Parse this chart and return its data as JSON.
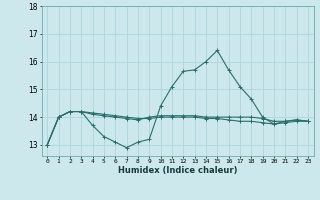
{
  "xlabel": "Humidex (Indice chaleur)",
  "background_color": "#cde8ec",
  "grid_color": "#b0d8de",
  "line_color": "#2a6e6a",
  "x_values": [
    0,
    1,
    2,
    3,
    4,
    5,
    6,
    7,
    8,
    9,
    10,
    11,
    12,
    13,
    14,
    15,
    16,
    17,
    18,
    19,
    20,
    21,
    22,
    23
  ],
  "series1": [
    13.0,
    14.0,
    14.2,
    14.2,
    13.7,
    13.3,
    13.1,
    12.9,
    13.1,
    13.2,
    14.4,
    15.1,
    15.65,
    15.7,
    16.0,
    16.4,
    15.7,
    15.1,
    14.65,
    14.0,
    13.75,
    13.85,
    13.9,
    13.85
  ],
  "series2": [
    13.0,
    14.0,
    14.2,
    14.2,
    14.1,
    14.05,
    14.0,
    13.95,
    13.9,
    14.0,
    14.05,
    14.05,
    14.05,
    14.05,
    14.0,
    14.0,
    14.0,
    14.0,
    14.0,
    13.95,
    13.85,
    13.85,
    13.9,
    13.85
  ],
  "series3": [
    13.0,
    14.0,
    14.2,
    14.2,
    14.15,
    14.1,
    14.05,
    14.0,
    13.95,
    13.95,
    14.0,
    14.0,
    14.0,
    14.0,
    13.95,
    13.95,
    13.9,
    13.85,
    13.85,
    13.8,
    13.75,
    13.8,
    13.85,
    13.85
  ],
  "ylim": [
    12.6,
    18.0
  ],
  "yticks": [
    13,
    14,
    15,
    16,
    17,
    18
  ],
  "xticks": [
    0,
    1,
    2,
    3,
    4,
    5,
    6,
    7,
    8,
    9,
    10,
    11,
    12,
    13,
    14,
    15,
    16,
    17,
    18,
    19,
    20,
    21,
    22,
    23
  ]
}
